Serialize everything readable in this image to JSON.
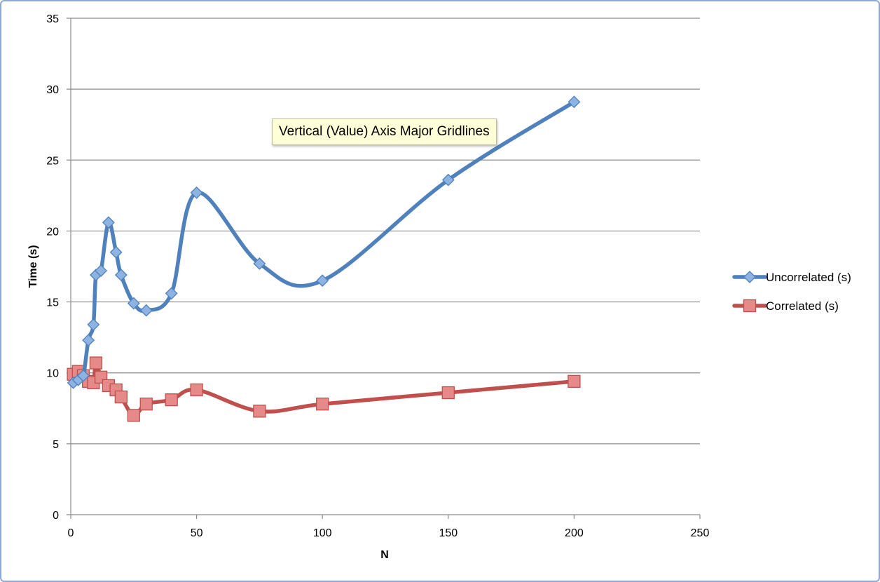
{
  "chart_data": {
    "type": "scatter",
    "title": "",
    "xlabel": "N",
    "ylabel": "Time (s)",
    "xlim": [
      0,
      250
    ],
    "ylim": [
      0,
      35
    ],
    "xticks": [
      0,
      50,
      100,
      150,
      200,
      250
    ],
    "yticks": [
      0,
      5,
      10,
      15,
      20,
      25,
      30,
      35
    ],
    "grid": "horizontal major",
    "legend_position": "right",
    "series": [
      {
        "name": "Uncorrelated (s)",
        "color": "#4f81bd",
        "marker": "diamond",
        "smoothed": true,
        "x": [
          1,
          3,
          5,
          7,
          9,
          10,
          12,
          15,
          18,
          20,
          25,
          30,
          40,
          50,
          75,
          100,
          150,
          200
        ],
        "y": [
          9.3,
          9.5,
          9.8,
          12.3,
          13.4,
          16.9,
          17.2,
          20.6,
          18.5,
          16.9,
          14.9,
          14.4,
          15.6,
          22.7,
          17.7,
          16.5,
          23.6,
          29.1
        ]
      },
      {
        "name": "Correlated (s)",
        "color": "#c0504d",
        "marker": "square",
        "smoothed": true,
        "x": [
          1,
          3,
          5,
          7,
          9,
          10,
          12,
          15,
          18,
          20,
          25,
          30,
          40,
          50,
          75,
          100,
          150,
          200
        ],
        "y": [
          9.9,
          10.1,
          9.8,
          9.4,
          9.3,
          10.7,
          9.7,
          9.1,
          8.8,
          8.3,
          7.0,
          7.8,
          8.1,
          8.8,
          7.3,
          7.8,
          8.6,
          9.4
        ]
      }
    ]
  },
  "tooltip": {
    "text": "Vertical (Value) Axis Major Gridlines"
  }
}
